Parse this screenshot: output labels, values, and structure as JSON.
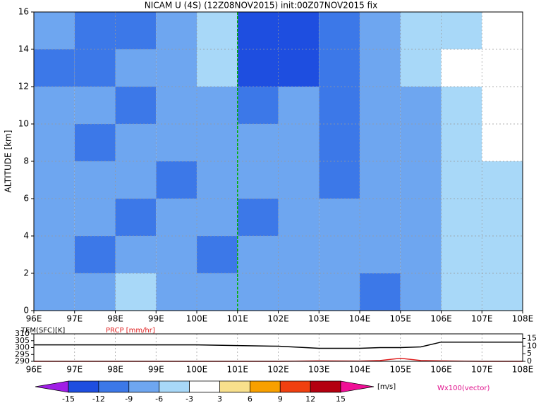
{
  "chart_data": {
    "type": "contour",
    "title": "NICAM U (4S) (12Z08NOV2015) init:00Z07NOV2015 fix",
    "ylabel": "ALTITUDE [km]",
    "xlim": [
      96,
      108
    ],
    "xticks": [
      {
        "value": 96,
        "label": "96E"
      },
      {
        "value": 97,
        "label": "97E"
      },
      {
        "value": 98,
        "label": "98E"
      },
      {
        "value": 99,
        "label": "99E"
      },
      {
        "value": 100,
        "label": "100E"
      },
      {
        "value": 101,
        "label": "101E"
      },
      {
        "value": 102,
        "label": "102E"
      },
      {
        "value": 103,
        "label": "103E"
      },
      {
        "value": 104,
        "label": "104E"
      },
      {
        "value": 105,
        "label": "105E"
      },
      {
        "value": 106,
        "label": "106E"
      },
      {
        "value": 107,
        "label": "107E"
      },
      {
        "value": 108,
        "label": "108E"
      }
    ],
    "ylim": [
      0,
      16
    ],
    "yticks": [
      0,
      2,
      4,
      6,
      8,
      10,
      12,
      14,
      16
    ],
    "grid": true,
    "vline": 101,
    "x": [
      96.5,
      97.5,
      98.5,
      99.5,
      100.5,
      101.5,
      102.5,
      103.5,
      104.5,
      105.5,
      106.5,
      107.5
    ],
    "y": [
      1,
      3,
      5,
      7,
      9,
      11,
      13,
      15
    ],
    "z": [
      [
        -7,
        -7,
        -4,
        -7,
        -7,
        -7,
        -7,
        -7,
        -10,
        -7,
        -4,
        -4
      ],
      [
        -7,
        -10,
        -7,
        -7,
        -10,
        -7,
        -7,
        -7,
        -7,
        -7,
        -4,
        -4
      ],
      [
        -7,
        -7,
        -10,
        -7,
        -7,
        -10,
        -7,
        -7,
        -7,
        -7,
        -4,
        -4
      ],
      [
        -7,
        -7,
        -7,
        -10,
        -7,
        -7,
        -7,
        -10,
        -7,
        -7,
        -4,
        -4
      ],
      [
        -7,
        -10,
        -7,
        -7,
        -7,
        -7,
        -7,
        -10,
        -7,
        -7,
        -4,
        0
      ],
      [
        -7,
        -7,
        -10,
        -7,
        -7,
        -10,
        -7,
        -10,
        -7,
        -7,
        -4,
        0
      ],
      [
        -10,
        -10,
        -7,
        -7,
        -4,
        -13,
        -13,
        -10,
        -7,
        -4,
        0,
        0
      ],
      [
        -7,
        -10,
        -10,
        -7,
        -4,
        -13,
        -13,
        -10,
        -7,
        -4,
        -4,
        0
      ]
    ],
    "colorbar": {
      "levels": [
        -15,
        -12,
        -9,
        -6,
        -3,
        3,
        6,
        9,
        12,
        15
      ],
      "colors": [
        "#a01ee6",
        "#1e4ee0",
        "#3c78e8",
        "#6ea6f0",
        "#a8d8f8",
        "#ffffff",
        "#f8e08c",
        "#f8a000",
        "#f04010",
        "#b40010",
        "#f00f96"
      ],
      "unit": "[m/s]",
      "vector_label": "Wx100(vector)"
    },
    "sub": {
      "left_label": "TEM(SFC)[K]",
      "right_label": "PRCP [mm/hr]",
      "ylim": [
        290,
        310
      ],
      "yticks": [
        290,
        295,
        300,
        305,
        310
      ],
      "y2lim": [
        0,
        18
      ],
      "y2ticks": [
        0,
        5,
        10,
        15
      ],
      "x": [
        96,
        97,
        98,
        99,
        100,
        101,
        102,
        103,
        104,
        104.5,
        105,
        105.5,
        106,
        107,
        108
      ],
      "series": [
        {
          "name": "TEM(SFC)[K]",
          "color": "#000000",
          "values": [
            302,
            302,
            302,
            302,
            302,
            301.5,
            301,
            299.5,
            299.5,
            300,
            300,
            300.5,
            304,
            304,
            304
          ]
        },
        {
          "name": "PRCP [mm/hr]",
          "color": "#e02020",
          "axis": "y2",
          "values": [
            0,
            0,
            0,
            0,
            0,
            0,
            0,
            0.3,
            0.2,
            0.5,
            2,
            0.5,
            0.3,
            0,
            0
          ]
        }
      ]
    }
  }
}
